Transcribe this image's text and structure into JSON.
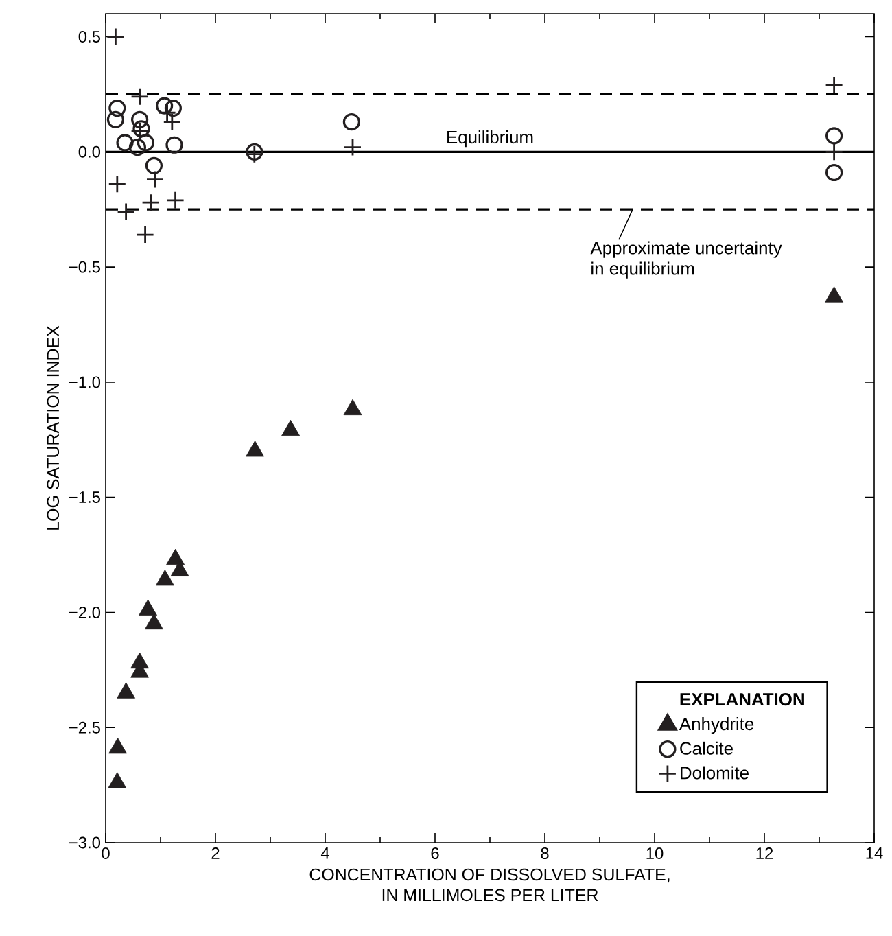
{
  "chart_data": {
    "type": "scatter",
    "xlabel": "CONCENTRATION OF DISSOLVED SULFATE,\nIN MILLIMOLES PER LITER",
    "ylabel": "LOG SATURATION INDEX",
    "legend_title": "EXPLANATION",
    "xlim": [
      0,
      14
    ],
    "ylim": [
      -3.0,
      0.6
    ],
    "xticks": [
      0,
      2,
      4,
      6,
      8,
      10,
      12,
      14
    ],
    "yticks": [
      {
        "value": -3.0,
        "label": "−3.0"
      },
      {
        "value": -2.5,
        "label": "−2.5"
      },
      {
        "value": -2.0,
        "label": "−2.0"
      },
      {
        "value": -1.5,
        "label": "−1.5"
      },
      {
        "value": -1.0,
        "label": "−1.0"
      },
      {
        "value": -0.5,
        "label": "−0.5"
      },
      {
        "value": 0.0,
        "label": "0.0"
      },
      {
        "value": 0.5,
        "label": "0.5"
      }
    ],
    "grid": false,
    "legend": "bottom right",
    "ref_lines": [
      {
        "axis": "y",
        "value": 0,
        "label": "Equilibrium",
        "line_style": "solid",
        "color": "#000000"
      },
      {
        "axis": "y",
        "value": 0.25,
        "label": null,
        "line_style": "dashed",
        "color": "#000000"
      },
      {
        "axis": "y",
        "value": -0.25,
        "label": null,
        "line_style": "dashed",
        "color": "#000000"
      }
    ],
    "annotations": [
      {
        "text": "Approximate uncertainty\nin equilibrium",
        "x": 9.6,
        "y": -0.25
      }
    ],
    "series": [
      {
        "name": "Anhydrite",
        "color": "#231f20",
        "marker": "triangle",
        "x": [
          1.27,
          1.35,
          1.08,
          0.77,
          0.88,
          0.62,
          0.62,
          0.37,
          0.22,
          0.21,
          2.72,
          3.37,
          4.5,
          13.27
        ],
        "values": [
          -1.77,
          -1.82,
          -1.86,
          -1.99,
          -2.05,
          -2.22,
          -2.26,
          -2.35,
          -2.59,
          -2.74,
          -1.3,
          -1.21,
          -1.12,
          -0.63
        ]
      },
      {
        "name": "Calcite",
        "color": "#231f20",
        "marker": "circle",
        "x": [
          0.21,
          0.18,
          0.62,
          0.65,
          1.07,
          1.23,
          0.35,
          0.58,
          0.73,
          1.25,
          0.88,
          2.71,
          4.48,
          13.27,
          13.27
        ],
        "values": [
          0.19,
          0.14,
          0.14,
          0.1,
          0.2,
          0.19,
          0.04,
          0.02,
          0.04,
          0.03,
          -0.06,
          0.0,
          0.13,
          0.07,
          -0.09
        ]
      },
      {
        "name": "Dolomite",
        "color": "#231f20",
        "marker": "cross",
        "x": [
          0.18,
          0.62,
          1.12,
          1.21,
          0.62,
          2.71,
          4.5,
          0.21,
          0.9,
          0.37,
          0.82,
          1.27,
          0.72,
          13.27,
          13.27
        ],
        "values": [
          0.5,
          0.24,
          0.17,
          0.13,
          0.09,
          -0.01,
          0.02,
          -0.14,
          -0.12,
          -0.26,
          -0.22,
          -0.21,
          -0.36,
          0.29,
          0.0
        ]
      }
    ]
  }
}
